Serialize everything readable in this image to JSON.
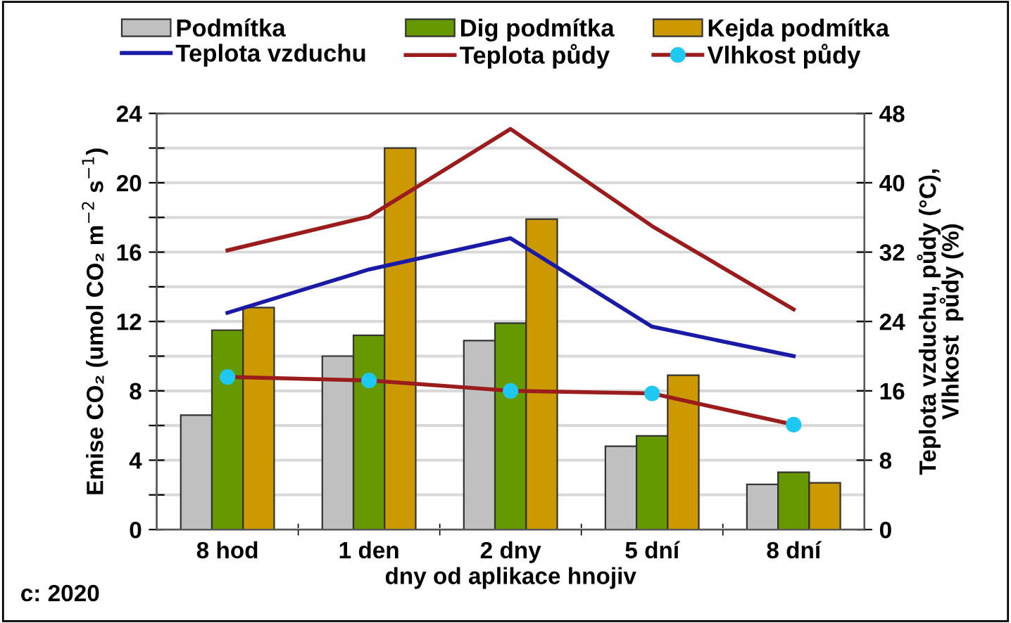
{
  "chart_data": {
    "type": "bar",
    "categories": [
      "8 hod",
      "1 den",
      "2 dny",
      "5 dní",
      "8 dní"
    ],
    "xlabel": "dny od aplikace hnojiv",
    "ylabel": "Emise CO₂ (umol CO₂ m$^{−2}$ s$^{−1}$)",
    "y2label": "Teplota vzduchu, půdy (°C),\nVlhkost  půdy (%)",
    "annotations": [
      "c: 2020"
    ],
    "ylim": [
      0,
      24
    ],
    "yticks": [
      0,
      {
        "value": 2,
        "label": null
      },
      4,
      {
        "value": 6,
        "label": null
      },
      8,
      {
        "value": 10,
        "label": null
      },
      12,
      {
        "value": 14,
        "label": null
      },
      16,
      {
        "value": 18,
        "label": null
      },
      20,
      {
        "value": 22,
        "label": null
      },
      24
    ],
    "y2lim": [
      0,
      48
    ],
    "y2ticks": [
      0,
      8,
      16,
      24,
      32,
      40,
      48
    ],
    "grid": "y",
    "legend": "top",
    "series": [
      {
        "name": "Podmítka",
        "color": "#c0c0c0",
        "values": [
          6.6,
          10.0,
          10.9,
          4.8,
          2.6
        ]
      },
      {
        "name": "Dig podmítka",
        "color": "#669900",
        "values": [
          11.5,
          11.2,
          11.9,
          5.4,
          3.3
        ]
      },
      {
        "name": "Kejda podmítka",
        "color": "#cc9900",
        "values": [
          12.8,
          22.0,
          17.9,
          8.9,
          2.7
        ]
      },
      {
        "name": "Teplota vzduchu",
        "type": "line",
        "axis": "y2",
        "color": "#1a1aa6",
        "marker": "none",
        "values": [
          25.0,
          30.0,
          33.6,
          23.4,
          20.0
        ]
      },
      {
        "name": "Teplota půdy",
        "type": "line",
        "axis": "y2",
        "color": "#9b1c1c",
        "marker": "none",
        "values": [
          32.2,
          36.1,
          46.2,
          35.0,
          25.4
        ]
      },
      {
        "name": "Vlhkost půdy",
        "type": "line",
        "axis": "y2",
        "color": "#9b1c1c",
        "marker": "circle",
        "colors": [
          "#1ec8f0",
          "#1ec8f0",
          "#1ec8f0",
          "#1ec8f0",
          "#1ec8f0"
        ],
        "values": [
          17.6,
          17.2,
          16.0,
          15.7,
          12.1
        ]
      }
    ]
  }
}
